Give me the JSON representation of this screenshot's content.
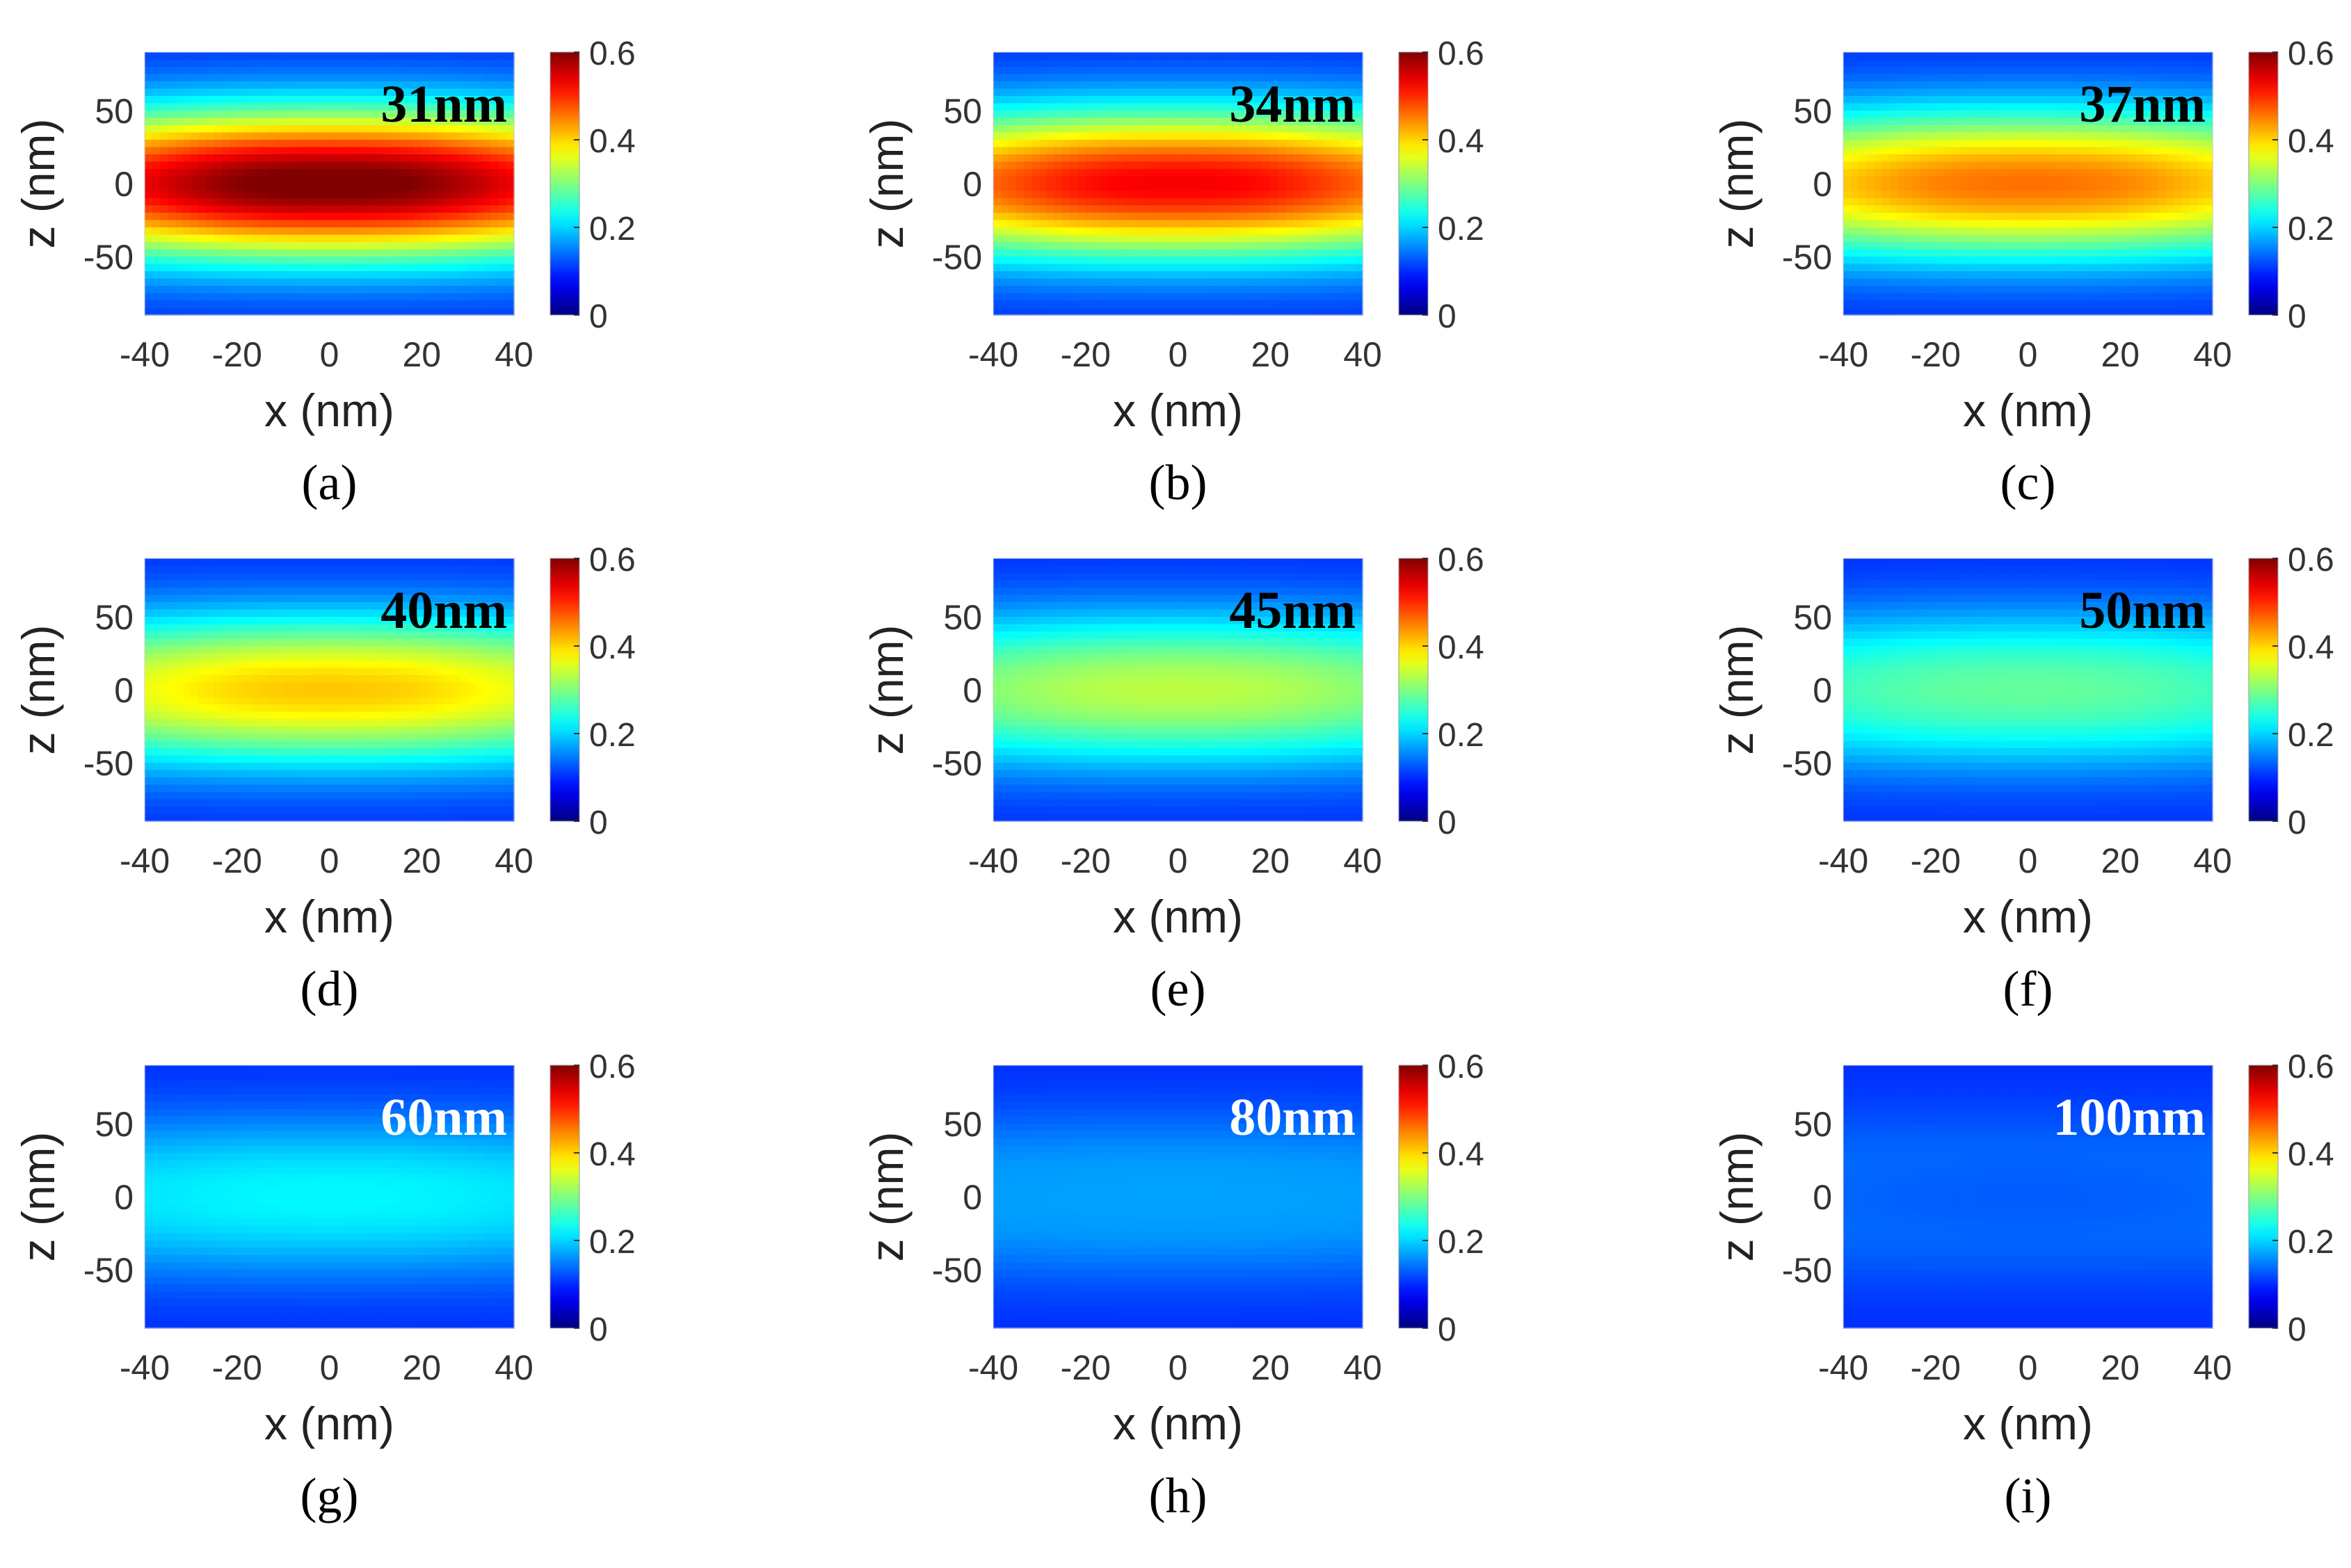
{
  "figure": {
    "colorbar": {
      "min": 0,
      "max": 0.6,
      "ticks": [
        0,
        0.2,
        0.4,
        0.6
      ],
      "tick_labels": [
        "0",
        "0.2",
        "0.4",
        "0.6"
      ],
      "colormap": "jet"
    }
  },
  "chart_data": [
    {
      "type": "heatmap",
      "panel": "(a)",
      "annotation": "31nm",
      "annotation_color": "#000000",
      "peak_value": 0.6,
      "xlabel": "x (nm)",
      "ylabel": "z (nm)",
      "xlim": [
        -40,
        40
      ],
      "ylim": [
        -90,
        90
      ],
      "xticks": [
        -40,
        -20,
        0,
        20,
        40
      ],
      "xtick_labels": [
        "-40",
        "-20",
        "0",
        "20",
        "40"
      ],
      "yticks": [
        50,
        0,
        -50
      ],
      "ytick_labels": [
        "50",
        "0",
        "-50"
      ]
    },
    {
      "type": "heatmap",
      "panel": "(b)",
      "annotation": "34nm",
      "annotation_color": "#000000",
      "peak_value": 0.52,
      "xlabel": "x (nm)",
      "ylabel": "z (nm)",
      "xlim": [
        -40,
        40
      ],
      "ylim": [
        -90,
        90
      ],
      "xticks": [
        -40,
        -20,
        0,
        20,
        40
      ],
      "xtick_labels": [
        "-40",
        "-20",
        "0",
        "20",
        "40"
      ],
      "yticks": [
        50,
        0,
        -50
      ],
      "ytick_labels": [
        "50",
        "0",
        "-50"
      ]
    },
    {
      "type": "heatmap",
      "panel": "(c)",
      "annotation": "37nm",
      "annotation_color": "#000000",
      "peak_value": 0.45,
      "xlabel": "x (nm)",
      "ylabel": "z (nm)",
      "xlim": [
        -40,
        40
      ],
      "ylim": [
        -90,
        90
      ],
      "xticks": [
        -40,
        -20,
        0,
        20,
        40
      ],
      "xtick_labels": [
        "-40",
        "-20",
        "0",
        "20",
        "40"
      ],
      "yticks": [
        50,
        0,
        -50
      ],
      "ytick_labels": [
        "50",
        "0",
        "-50"
      ]
    },
    {
      "type": "heatmap",
      "panel": "(d)",
      "annotation": "40nm",
      "annotation_color": "#000000",
      "peak_value": 0.4,
      "xlabel": "x (nm)",
      "ylabel": "z (nm)",
      "xlim": [
        -40,
        40
      ],
      "ylim": [
        -90,
        90
      ],
      "xticks": [
        -40,
        -20,
        0,
        20,
        40
      ],
      "xtick_labels": [
        "-40",
        "-20",
        "0",
        "20",
        "40"
      ],
      "yticks": [
        50,
        0,
        -50
      ],
      "ytick_labels": [
        "50",
        "0",
        "-50"
      ]
    },
    {
      "type": "heatmap",
      "panel": "(e)",
      "annotation": "45nm",
      "annotation_color": "#000000",
      "peak_value": 0.33,
      "xlabel": "x (nm)",
      "ylabel": "z (nm)",
      "xlim": [
        -40,
        40
      ],
      "ylim": [
        -90,
        90
      ],
      "xticks": [
        -40,
        -20,
        0,
        20,
        40
      ],
      "xtick_labels": [
        "-40",
        "-20",
        "0",
        "20",
        "40"
      ],
      "yticks": [
        50,
        0,
        -50
      ],
      "ytick_labels": [
        "50",
        "0",
        "-50"
      ]
    },
    {
      "type": "heatmap",
      "panel": "(f)",
      "annotation": "50nm",
      "annotation_color": "#000000",
      "peak_value": 0.28,
      "xlabel": "x (nm)",
      "ylabel": "z (nm)",
      "xlim": [
        -40,
        40
      ],
      "ylim": [
        -90,
        90
      ],
      "xticks": [
        -40,
        -20,
        0,
        20,
        40
      ],
      "xtick_labels": [
        "-40",
        "-20",
        "0",
        "20",
        "40"
      ],
      "yticks": [
        50,
        0,
        -50
      ],
      "ytick_labels": [
        "50",
        "0",
        "-50"
      ]
    },
    {
      "type": "heatmap",
      "panel": "(g)",
      "annotation": "60nm",
      "annotation_color": "#ffffff",
      "peak_value": 0.22,
      "xlabel": "x (nm)",
      "ylabel": "z (nm)",
      "xlim": [
        -40,
        40
      ],
      "ylim": [
        -90,
        90
      ],
      "xticks": [
        -40,
        -20,
        0,
        20,
        40
      ],
      "xtick_labels": [
        "-40",
        "-20",
        "0",
        "20",
        "40"
      ],
      "yticks": [
        50,
        0,
        -50
      ],
      "ytick_labels": [
        "50",
        "0",
        "-50"
      ]
    },
    {
      "type": "heatmap",
      "panel": "(h)",
      "annotation": "80nm",
      "annotation_color": "#ffffff",
      "peak_value": 0.17,
      "xlabel": "x (nm)",
      "ylabel": "z (nm)",
      "xlim": [
        -40,
        40
      ],
      "ylim": [
        -90,
        90
      ],
      "xticks": [
        -40,
        -20,
        0,
        20,
        40
      ],
      "xtick_labels": [
        "-40",
        "-20",
        "0",
        "20",
        "40"
      ],
      "yticks": [
        50,
        0,
        -50
      ],
      "ytick_labels": [
        "50",
        "0",
        "-50"
      ]
    },
    {
      "type": "heatmap",
      "panel": "(i)",
      "annotation": "100nm",
      "annotation_color": "#ffffff",
      "peak_value": 0.13,
      "xlabel": "x (nm)",
      "ylabel": "z (nm)",
      "xlim": [
        -40,
        40
      ],
      "ylim": [
        -90,
        90
      ],
      "xticks": [
        -40,
        -20,
        0,
        20,
        40
      ],
      "xtick_labels": [
        "-40",
        "-20",
        "0",
        "20",
        "40"
      ],
      "yticks": [
        50,
        0,
        -50
      ],
      "ytick_labels": [
        "50",
        "0",
        "-50"
      ]
    }
  ]
}
